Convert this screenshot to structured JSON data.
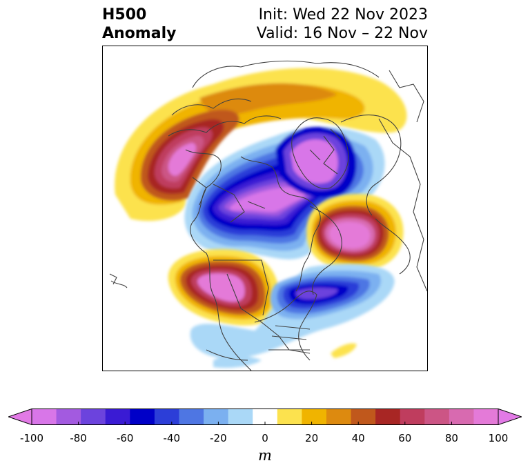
{
  "header": {
    "left_line1": "H500",
    "left_line2": "Anomaly",
    "right_line1": "Init: Wed 22 Nov 2023",
    "right_line2": "Valid: 16 Nov – 22 Nov"
  },
  "map": {
    "projection": "polar-stereographic-north",
    "field": "500 hPa geopotential height anomaly"
  },
  "colorbar": {
    "units": "m",
    "extend": "both",
    "ticks": [
      -100,
      -80,
      -60,
      -40,
      -20,
      0,
      20,
      40,
      60,
      80,
      100
    ],
    "tick_labels": [
      "-100",
      "-80",
      "-60",
      "-40",
      "-20",
      "0",
      "20",
      "40",
      "60",
      "80",
      "100"
    ],
    "colors": [
      "#d876e8",
      "#a35ae0",
      "#6c43dd",
      "#3a1bd4",
      "#0000c8",
      "#2c3ed8",
      "#4e76e3",
      "#7bb0f0",
      "#aad8f7",
      "#ffffff",
      "#fce24e",
      "#f0b400",
      "#dd8a0f",
      "#c0581c",
      "#a82624",
      "#bf3d5e",
      "#cc5585",
      "#d86ab0",
      "#e47ad8"
    ],
    "under_color": "#e27ae6",
    "over_color": "#e27ae6"
  }
}
